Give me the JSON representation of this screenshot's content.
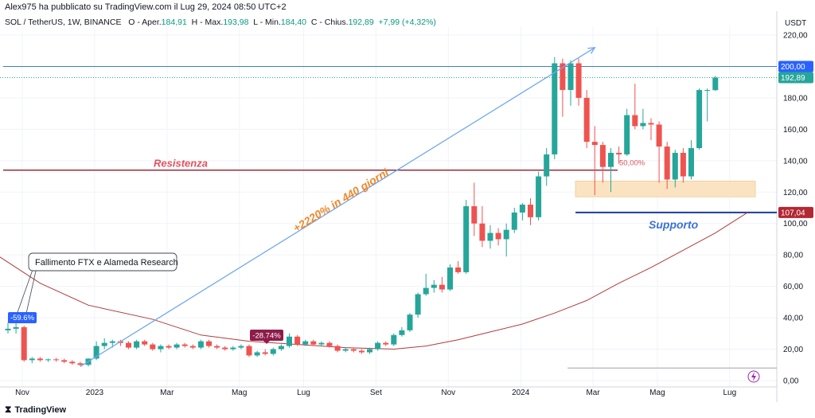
{
  "header": {
    "published": "Alex975 ha pubblicato su TradingView.com il Lug 29, 2024 08:50 UTC+2",
    "symbol": "SOL / TetherUS, 1W, BINANCE",
    "open_label": "O - Aper.",
    "open": "184,91",
    "high_label": "H - Max.",
    "high": "193,98",
    "low_label": "L - Min.",
    "low": "184,40",
    "close_label": "C - Chius.",
    "close": "192,89",
    "change": "+7,99 (+4,32%)"
  },
  "footer": {
    "brand": "TradingView",
    "logo_icon": "tradingview-logo-icon"
  },
  "colors": {
    "up": "#26a69a",
    "down": "#ef5350",
    "ma": "#b23b3b",
    "arrow": "#6ea8ef",
    "resistance": "#8e1c2e",
    "support": "#1a3c9c",
    "zone": "#fbe3c2",
    "price_green": "#26a69a",
    "level_200": "#3d7be0"
  },
  "chart_data": {
    "type": "candlestick",
    "currency": "USDT",
    "ylim": [
      0,
      230
    ],
    "yticks": [
      0,
      20,
      40,
      60,
      80,
      100,
      120,
      140,
      160,
      180,
      200,
      220
    ],
    "ytick_labels": [
      "0,00",
      "20,00",
      "40,00",
      "60,00",
      "80,00",
      "100,00",
      "120,00",
      "140,00",
      "160,00",
      "180,00",
      "200,00",
      "220,00"
    ],
    "xticks": [
      {
        "label": "Nov",
        "week": 0
      },
      {
        "label": "2023",
        "week": 9
      },
      {
        "label": "Mar",
        "week": 18
      },
      {
        "label": "Mag",
        "week": 27
      },
      {
        "label": "Lug",
        "week": 35
      },
      {
        "label": "Set",
        "week": 44
      },
      {
        "label": "Nov",
        "week": 53
      },
      {
        "label": "2024",
        "week": 62
      },
      {
        "label": "Mar",
        "week": 71
      },
      {
        "label": "Mag",
        "week": 79
      },
      {
        "label": "Lug",
        "week": 88
      }
    ],
    "candles": [
      {
        "o": 32,
        "h": 37,
        "l": 30,
        "c": 33
      },
      {
        "o": 33,
        "h": 38,
        "l": 30,
        "c": 34
      },
      {
        "o": 34,
        "h": 35,
        "l": 12,
        "c": 13
      },
      {
        "o": 13,
        "h": 15,
        "l": 11,
        "c": 14
      },
      {
        "o": 14,
        "h": 15,
        "l": 12,
        "c": 13
      },
      {
        "o": 13,
        "h": 14,
        "l": 12,
        "c": 13.5
      },
      {
        "o": 13.5,
        "h": 14.5,
        "l": 12,
        "c": 13
      },
      {
        "o": 13,
        "h": 14,
        "l": 11,
        "c": 12
      },
      {
        "o": 12,
        "h": 13,
        "l": 10,
        "c": 11
      },
      {
        "o": 11,
        "h": 12,
        "l": 9,
        "c": 10
      },
      {
        "o": 10,
        "h": 14,
        "l": 9,
        "c": 14
      },
      {
        "o": 14,
        "h": 25,
        "l": 13,
        "c": 22
      },
      {
        "o": 22,
        "h": 27,
        "l": 20,
        "c": 24
      },
      {
        "o": 24,
        "h": 26,
        "l": 21,
        "c": 25
      },
      {
        "o": 25,
        "h": 26,
        "l": 22,
        "c": 24
      },
      {
        "o": 24,
        "h": 25,
        "l": 20,
        "c": 21
      },
      {
        "o": 21,
        "h": 26,
        "l": 20,
        "c": 25
      },
      {
        "o": 25,
        "h": 26,
        "l": 22,
        "c": 23
      },
      {
        "o": 23,
        "h": 24,
        "l": 19,
        "c": 20
      },
      {
        "o": 20,
        "h": 23,
        "l": 18,
        "c": 22
      },
      {
        "o": 22,
        "h": 23,
        "l": 20,
        "c": 21
      },
      {
        "o": 21,
        "h": 24,
        "l": 20,
        "c": 23
      },
      {
        "o": 23,
        "h": 24,
        "l": 21,
        "c": 22
      },
      {
        "o": 22,
        "h": 23,
        "l": 20,
        "c": 21
      },
      {
        "o": 21,
        "h": 26,
        "l": 20,
        "c": 25
      },
      {
        "o": 25,
        "h": 26,
        "l": 21,
        "c": 22
      },
      {
        "o": 22,
        "h": 23,
        "l": 20,
        "c": 21
      },
      {
        "o": 21,
        "h": 22,
        "l": 19,
        "c": 20
      },
      {
        "o": 20,
        "h": 22,
        "l": 19,
        "c": 21
      },
      {
        "o": 21,
        "h": 23,
        "l": 20,
        "c": 22
      },
      {
        "o": 22,
        "h": 23,
        "l": 15,
        "c": 16
      },
      {
        "o": 16,
        "h": 19,
        "l": 15,
        "c": 18
      },
      {
        "o": 18,
        "h": 20,
        "l": 16,
        "c": 17
      },
      {
        "o": 17,
        "h": 21,
        "l": 16,
        "c": 20
      },
      {
        "o": 20,
        "h": 23,
        "l": 19,
        "c": 22
      },
      {
        "o": 22,
        "h": 30,
        "l": 21,
        "c": 28
      },
      {
        "o": 28,
        "h": 29,
        "l": 22,
        "c": 23
      },
      {
        "o": 23,
        "h": 26,
        "l": 22,
        "c": 25
      },
      {
        "o": 25,
        "h": 26,
        "l": 22,
        "c": 23
      },
      {
        "o": 23,
        "h": 25,
        "l": 22,
        "c": 24
      },
      {
        "o": 24,
        "h": 25,
        "l": 21,
        "c": 22
      },
      {
        "o": 22,
        "h": 23,
        "l": 18,
        "c": 19
      },
      {
        "o": 19,
        "h": 21,
        "l": 18,
        "c": 20
      },
      {
        "o": 20,
        "h": 21,
        "l": 18,
        "c": 19
      },
      {
        "o": 19,
        "h": 20,
        "l": 17,
        "c": 18
      },
      {
        "o": 18,
        "h": 21,
        "l": 17,
        "c": 20
      },
      {
        "o": 20,
        "h": 25,
        "l": 19,
        "c": 24
      },
      {
        "o": 24,
        "h": 25,
        "l": 22,
        "c": 23
      },
      {
        "o": 23,
        "h": 30,
        "l": 22,
        "c": 29
      },
      {
        "o": 29,
        "h": 34,
        "l": 28,
        "c": 32
      },
      {
        "o": 32,
        "h": 43,
        "l": 31,
        "c": 42
      },
      {
        "o": 42,
        "h": 56,
        "l": 40,
        "c": 55
      },
      {
        "o": 55,
        "h": 68,
        "l": 54,
        "c": 59
      },
      {
        "o": 59,
        "h": 64,
        "l": 56,
        "c": 61
      },
      {
        "o": 61,
        "h": 66,
        "l": 56,
        "c": 58
      },
      {
        "o": 58,
        "h": 74,
        "l": 57,
        "c": 72
      },
      {
        "o": 72,
        "h": 76,
        "l": 68,
        "c": 69
      },
      {
        "o": 69,
        "h": 115,
        "l": 68,
        "c": 111
      },
      {
        "o": 111,
        "h": 126,
        "l": 92,
        "c": 100
      },
      {
        "o": 100,
        "h": 111,
        "l": 85,
        "c": 89
      },
      {
        "o": 89,
        "h": 99,
        "l": 84,
        "c": 94
      },
      {
        "o": 94,
        "h": 97,
        "l": 86,
        "c": 90
      },
      {
        "o": 90,
        "h": 100,
        "l": 79,
        "c": 96
      },
      {
        "o": 96,
        "h": 110,
        "l": 94,
        "c": 107
      },
      {
        "o": 107,
        "h": 113,
        "l": 102,
        "c": 112
      },
      {
        "o": 112,
        "h": 116,
        "l": 99,
        "c": 104
      },
      {
        "o": 104,
        "h": 133,
        "l": 102,
        "c": 130
      },
      {
        "o": 130,
        "h": 148,
        "l": 124,
        "c": 144
      },
      {
        "o": 144,
        "h": 206,
        "l": 141,
        "c": 202
      },
      {
        "o": 202,
        "h": 205,
        "l": 168,
        "c": 185
      },
      {
        "o": 185,
        "h": 204,
        "l": 175,
        "c": 202
      },
      {
        "o": 202,
        "h": 205,
        "l": 175,
        "c": 180
      },
      {
        "o": 180,
        "h": 185,
        "l": 148,
        "c": 152
      },
      {
        "o": 152,
        "h": 162,
        "l": 118,
        "c": 150
      },
      {
        "o": 150,
        "h": 152,
        "l": 126,
        "c": 136
      },
      {
        "o": 136,
        "h": 148,
        "l": 120,
        "c": 145
      },
      {
        "o": 145,
        "h": 149,
        "l": 138,
        "c": 144
      },
      {
        "o": 144,
        "h": 173,
        "l": 143,
        "c": 169
      },
      {
        "o": 169,
        "h": 189,
        "l": 160,
        "c": 162
      },
      {
        "o": 162,
        "h": 173,
        "l": 160,
        "c": 164
      },
      {
        "o": 164,
        "h": 167,
        "l": 153,
        "c": 163
      },
      {
        "o": 163,
        "h": 165,
        "l": 126,
        "c": 149
      },
      {
        "o": 149,
        "h": 152,
        "l": 122,
        "c": 128
      },
      {
        "o": 128,
        "h": 147,
        "l": 123,
        "c": 145
      },
      {
        "o": 145,
        "h": 148,
        "l": 126,
        "c": 130
      },
      {
        "o": 130,
        "h": 153,
        "l": 128,
        "c": 148
      },
      {
        "o": 148,
        "h": 186,
        "l": 147,
        "c": 185
      },
      {
        "o": 185,
        "h": 186,
        "l": 165,
        "c": 185
      },
      {
        "o": 184.91,
        "h": 193.98,
        "l": 184.4,
        "c": 192.89
      }
    ],
    "moving_average": [
      {
        "week": -2,
        "v": 82
      },
      {
        "week": 4,
        "v": 62
      },
      {
        "week": 10,
        "v": 48
      },
      {
        "week": 18,
        "v": 39
      },
      {
        "week": 24,
        "v": 29
      },
      {
        "week": 30,
        "v": 25
      },
      {
        "week": 36,
        "v": 23
      },
      {
        "week": 42,
        "v": 21
      },
      {
        "week": 48,
        "v": 20
      },
      {
        "week": 52,
        "v": 22
      },
      {
        "week": 56,
        "v": 26
      },
      {
        "week": 60,
        "v": 31
      },
      {
        "week": 64,
        "v": 36
      },
      {
        "week": 68,
        "v": 43
      },
      {
        "week": 72,
        "v": 51
      },
      {
        "week": 76,
        "v": 62
      },
      {
        "week": 80,
        "v": 72
      },
      {
        "week": 84,
        "v": 83
      },
      {
        "week": 88,
        "v": 94
      },
      {
        "week": 92,
        "v": 107
      }
    ],
    "levels": {
      "resistance": {
        "value": 134,
        "label": "Resistenza"
      },
      "support": {
        "value": 107.04,
        "label": "Supporto",
        "price_tag": "107,04"
      },
      "round_200": {
        "value": 200,
        "price_tag": "200,00"
      },
      "current": {
        "value": 192.89,
        "price_tag": "192,89"
      },
      "zone": {
        "from": 117,
        "to": 127
      },
      "fib_label": "50,00%"
    },
    "annotations": {
      "arrow_text": "+2220% in 440 giorni",
      "ftx_callout": "Fallimento FTX e Alameda Research",
      "drop_ftx": "-59.6%",
      "drop_mid": "-28.74%"
    }
  }
}
